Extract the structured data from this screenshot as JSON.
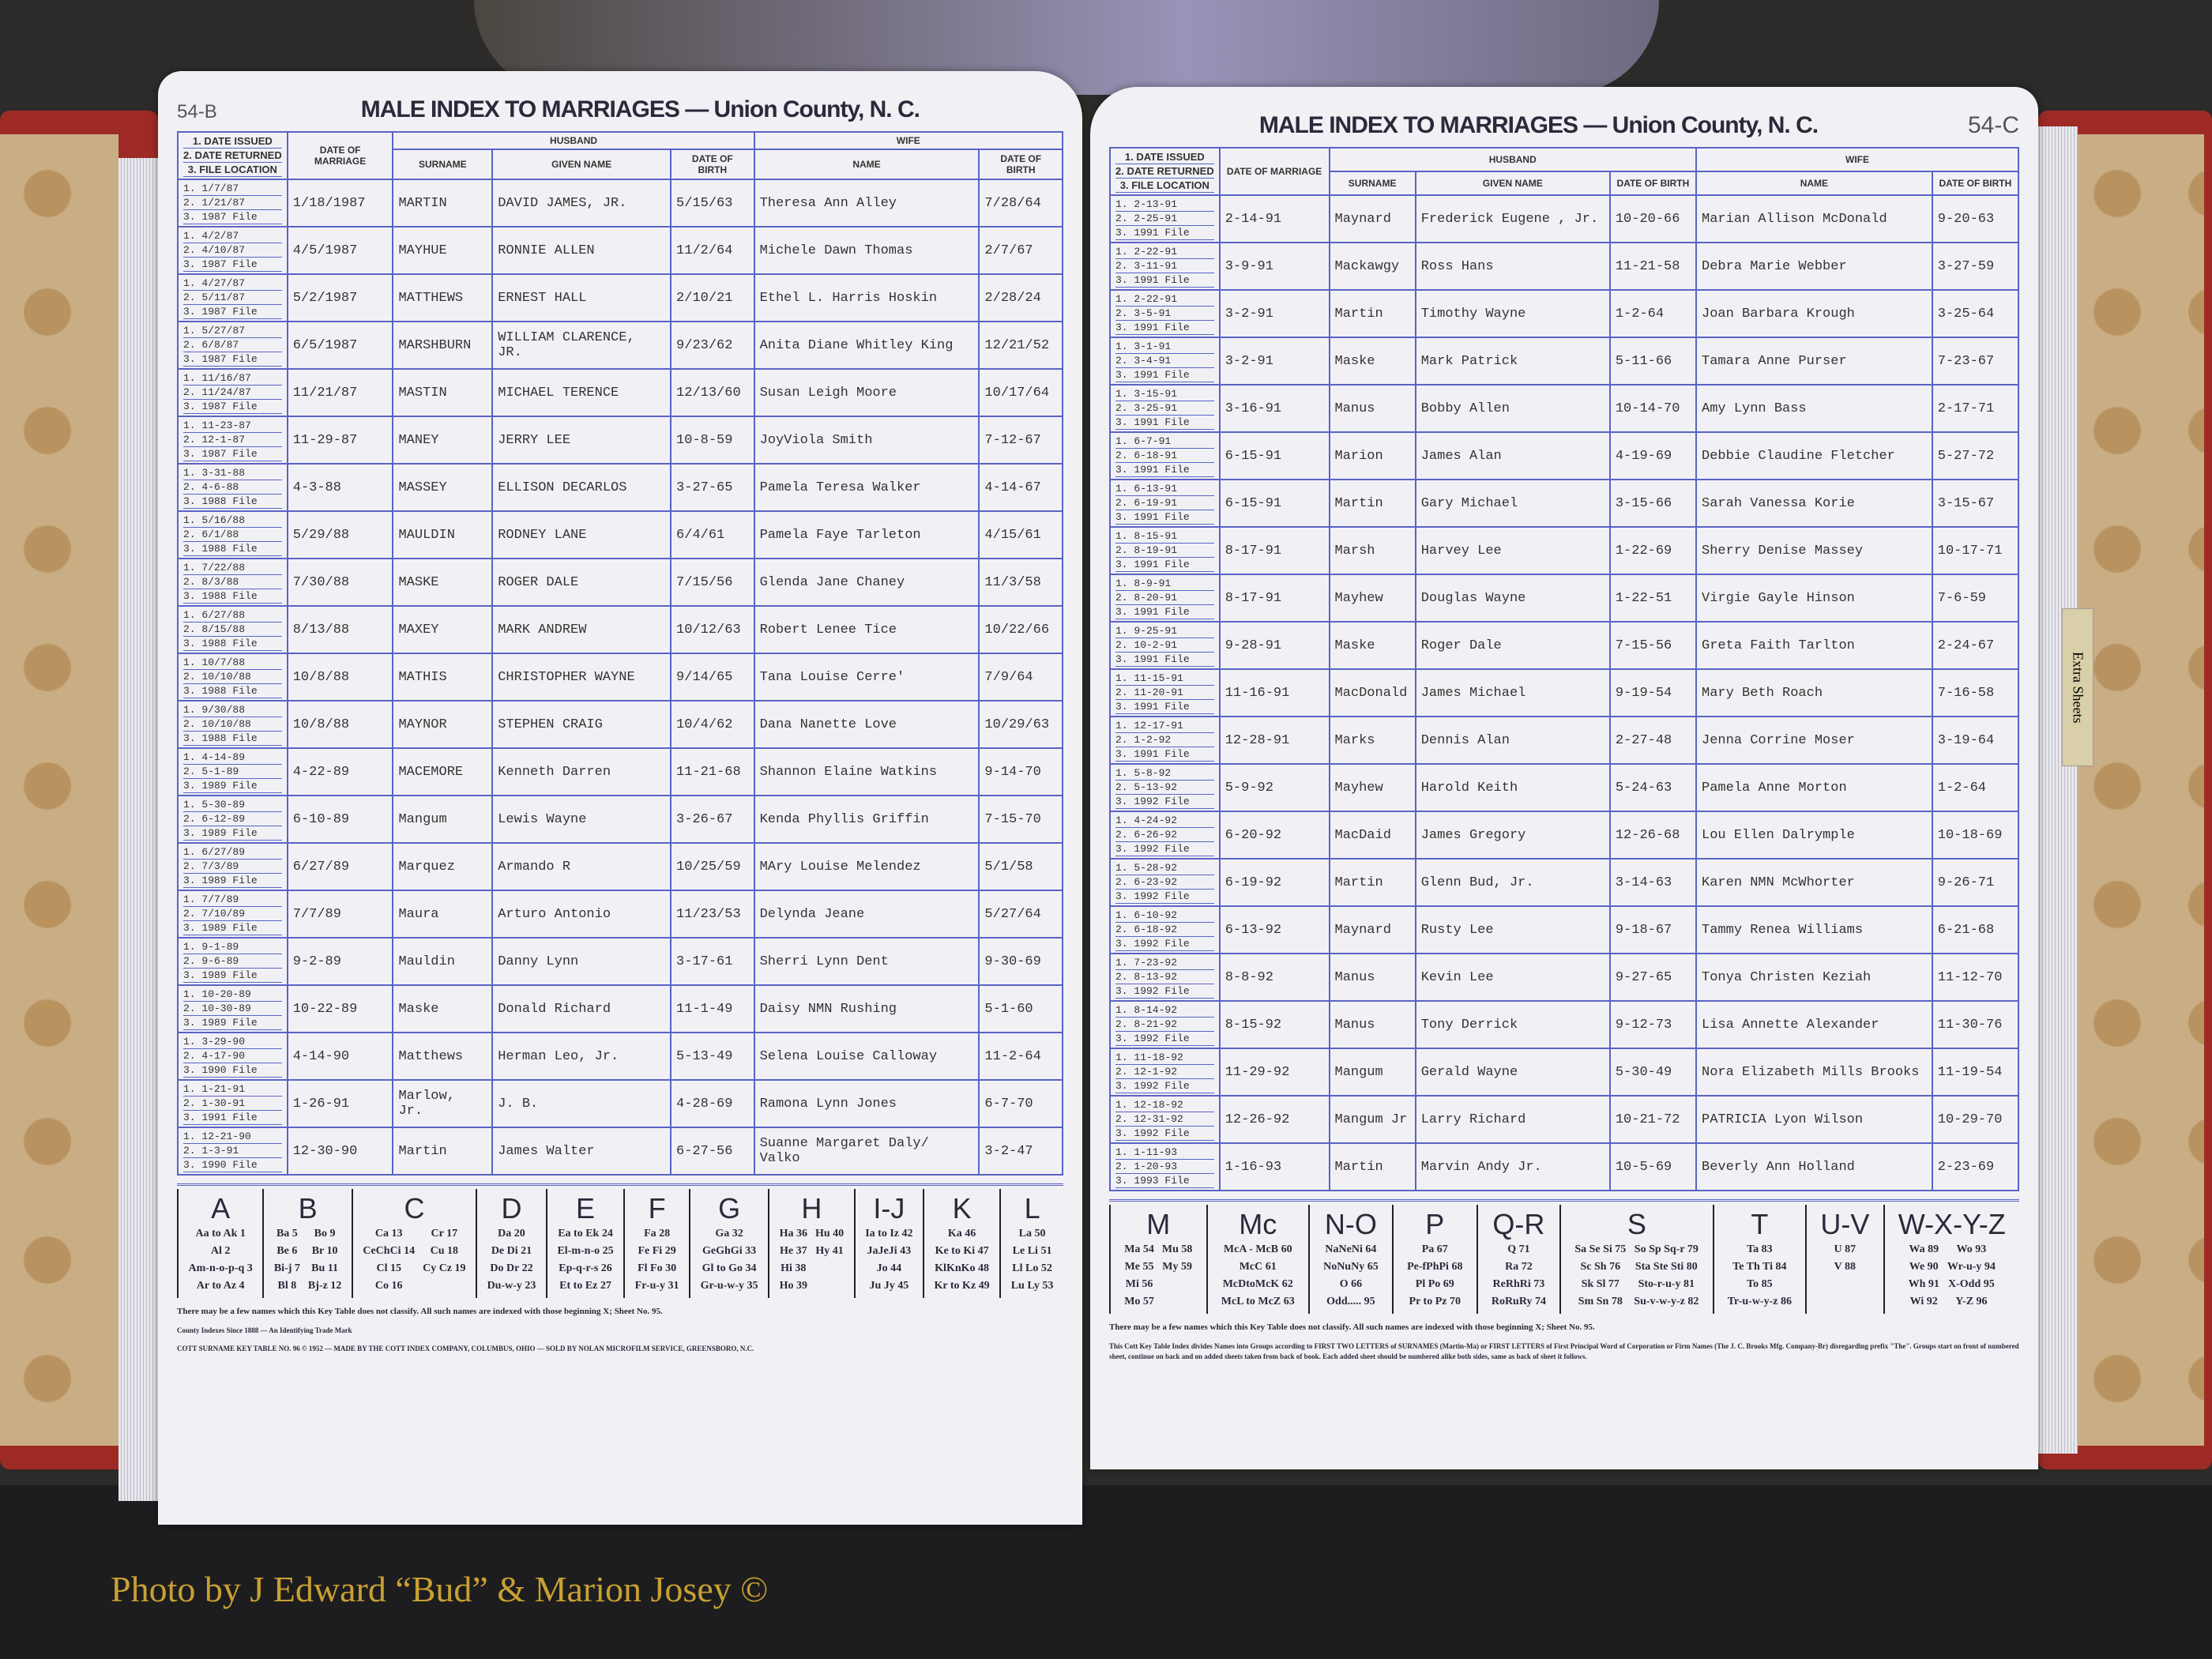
{
  "title": "MALE INDEX TO MARRIAGES — Union County, N. C.",
  "headers": {
    "issued": [
      "1. DATE ISSUED",
      "2. DATE RETURNED",
      "3. FILE LOCATION"
    ],
    "marriage": "DATE OF MARRIAGE",
    "husband": "HUSBAND",
    "surname": "SURNAME",
    "given": "GIVEN NAME",
    "dob": "DATE OF BIRTH",
    "wife": "WIFE",
    "name": "NAME",
    "wdob": "DATE OF BIRTH"
  },
  "left_page": {
    "page_number": "54-B",
    "records": [
      [
        "1/7/87",
        "1/21/87",
        "1987 File",
        "1/18/1987",
        "MARTIN",
        "DAVID JAMES, JR.",
        "5/15/63",
        "Theresa Ann Alley",
        "7/28/64"
      ],
      [
        "4/2/87",
        "4/10/87",
        "1987 File",
        "4/5/1987",
        "MAYHUE",
        "RONNIE ALLEN",
        "11/2/64",
        "Michele Dawn Thomas",
        "2/7/67"
      ],
      [
        "4/27/87",
        "5/11/87",
        "1987 File",
        "5/2/1987",
        "MATTHEWS",
        "ERNEST HALL",
        "2/10/21",
        "Ethel L. Harris Hoskin",
        "2/28/24"
      ],
      [
        "5/27/87",
        "6/8/87",
        "1987 File",
        "6/5/1987",
        "MARSHBURN",
        "WILLIAM CLARENCE, JR.",
        "9/23/62",
        "Anita Diane Whitley King",
        "12/21/52"
      ],
      [
        "11/16/87",
        "11/24/87",
        "1987 File",
        "11/21/87",
        "MASTIN",
        "MICHAEL TERENCE",
        "12/13/60",
        "Susan Leigh Moore",
        "10/17/64"
      ],
      [
        "11-23-87",
        "12-1-87",
        "1987 File",
        "11-29-87",
        "MANEY",
        "JERRY LEE",
        "10-8-59",
        "JoyViola Smith",
        "7-12-67"
      ],
      [
        "3-31-88",
        "4-6-88",
        "1988 File",
        "4-3-88",
        "MASSEY",
        "ELLISON DECARLOS",
        "3-27-65",
        "Pamela Teresa Walker",
        "4-14-67"
      ],
      [
        "5/16/88",
        "6/1/88",
        "1988 File",
        "5/29/88",
        "MAULDIN",
        "RODNEY LANE",
        "6/4/61",
        "Pamela Faye Tarleton",
        "4/15/61"
      ],
      [
        "7/22/88",
        "8/3/88",
        "1988 File",
        "7/30/88",
        "MASKE",
        "ROGER DALE",
        "7/15/56",
        "Glenda Jane Chaney",
        "11/3/58"
      ],
      [
        "6/27/88",
        "8/15/88",
        "1988 File",
        "8/13/88",
        "MAXEY",
        "MARK ANDREW",
        "10/12/63",
        "Robert Lenee Tice",
        "10/22/66"
      ],
      [
        "10/7/88",
        "10/10/88",
        "1988 File",
        "10/8/88",
        "MATHIS",
        "CHRISTOPHER WAYNE",
        "9/14/65",
        "Tana Louise Cerre'",
        "7/9/64"
      ],
      [
        "9/30/88",
        "10/10/88",
        "1988 File",
        "10/8/88",
        "MAYNOR",
        "STEPHEN CRAIG",
        "10/4/62",
        "Dana Nanette Love",
        "10/29/63"
      ],
      [
        "4-14-89",
        "5-1-89",
        "1989 File",
        "4-22-89",
        "MACEMORE",
        "Kenneth Darren",
        "11-21-68",
        "Shannon Elaine Watkins",
        "9-14-70"
      ],
      [
        "5-30-89",
        "6-12-89",
        "1989 File",
        "6-10-89",
        "Mangum",
        "Lewis Wayne",
        "3-26-67",
        "Kenda Phyllis Griffin",
        "7-15-70"
      ],
      [
        "6/27/89",
        "7/3/89",
        "1989 File",
        "6/27/89",
        "Marquez",
        "Armando R",
        "10/25/59",
        "MAry Louise Melendez",
        "5/1/58"
      ],
      [
        "7/7/89",
        "7/10/89",
        "1989 File",
        "7/7/89",
        "Maura",
        "Arturo Antonio",
        "11/23/53",
        "Delynda Jeane",
        "5/27/64"
      ],
      [
        "9-1-89",
        "9-6-89",
        "1989 File",
        "9-2-89",
        "Mauldin",
        "Danny Lynn",
        "3-17-61",
        "Sherri Lynn Dent",
        "9-30-69"
      ],
      [
        "10-20-89",
        "10-30-89",
        "1989 File",
        "10-22-89",
        "Maske",
        "Donald Richard",
        "11-1-49",
        "Daisy NMN Rushing",
        "5-1-60"
      ],
      [
        "3-29-90",
        "4-17-90",
        "1990 File",
        "4-14-90",
        "Matthews",
        "Herman Leo, Jr.",
        "5-13-49",
        "Selena Louise Calloway",
        "11-2-64"
      ],
      [
        "1-21-91",
        "1-30-91",
        "1991 File",
        "1-26-91",
        "Marlow, Jr.",
        "J. B.",
        "4-28-69",
        "Ramona Lynn Jones",
        "6-7-70"
      ],
      [
        "12-21-90",
        "1-3-91",
        "1990 File",
        "12-30-90",
        "Martin",
        "James Walter",
        "6-27-56",
        "Suanne Margaret Daly/ Valko",
        "3-2-47"
      ]
    ]
  },
  "right_page": {
    "page_number": "54-C",
    "records": [
      [
        "2-13-91",
        "2-25-91",
        "1991 File",
        "2-14-91",
        "Maynard",
        "Frederick Eugene , Jr.",
        "10-20-66",
        "Marian Allison McDonald",
        "9-20-63"
      ],
      [
        "2-22-91",
        "3-11-91",
        "1991 File",
        "3-9-91",
        "Mackawgy",
        "Ross Hans",
        "11-21-58",
        "Debra Marie Webber",
        "3-27-59"
      ],
      [
        "2-22-91",
        "3-5-91",
        "1991 File",
        "3-2-91",
        "Martin",
        "Timothy Wayne",
        "1-2-64",
        "Joan Barbara Krough",
        "3-25-64"
      ],
      [
        "3-1-91",
        "3-4-91",
        "1991 File",
        "3-2-91",
        "Maske",
        "Mark Patrick",
        "5-11-66",
        "Tamara Anne Purser",
        "7-23-67"
      ],
      [
        "3-15-91",
        "3-25-91",
        "1991 File",
        "3-16-91",
        "Manus",
        "Bobby Allen",
        "10-14-70",
        "Amy Lynn Bass",
        "2-17-71"
      ],
      [
        "6-7-91",
        "6-18-91",
        "1991 File",
        "6-15-91",
        "Marion",
        "James Alan",
        "4-19-69",
        "Debbie Claudine Fletcher",
        "5-27-72"
      ],
      [
        "6-13-91",
        "6-19-91",
        "1991 File",
        "6-15-91",
        "Martin",
        "Gary Michael",
        "3-15-66",
        "Sarah Vanessa Korie",
        "3-15-67"
      ],
      [
        "8-15-91",
        "8-19-91",
        "1991 File",
        "8-17-91",
        "Marsh",
        "Harvey Lee",
        "1-22-69",
        "Sherry Denise Massey",
        "10-17-71"
      ],
      [
        "8-9-91",
        "8-20-91",
        "1991 File",
        "8-17-91",
        "Mayhew",
        "Douglas Wayne",
        "1-22-51",
        "Virgie Gayle Hinson",
        "7-6-59"
      ],
      [
        "9-25-91",
        "10-2-91",
        "1991 File",
        "9-28-91",
        "Maske",
        "Roger Dale",
        "7-15-56",
        "Greta Faith Tarlton",
        "2-24-67"
      ],
      [
        "11-15-91",
        "11-20-91",
        "1991 File",
        "11-16-91",
        "MacDonald",
        "James Michael",
        "9-19-54",
        "Mary Beth Roach",
        "7-16-58"
      ],
      [
        "12-17-91",
        "1-2-92",
        "1991 File",
        "12-28-91",
        "Marks",
        "Dennis Alan",
        "2-27-48",
        "Jenna Corrine Moser",
        "3-19-64"
      ],
      [
        "5-8-92",
        "5-13-92",
        "1992 File",
        "5-9-92",
        "Mayhew",
        "Harold Keith",
        "5-24-63",
        "Pamela Anne Morton",
        "1-2-64"
      ],
      [
        "4-24-92",
        "6-26-92",
        "1992 File",
        "6-20-92",
        "MacDaid",
        "James Gregory",
        "12-26-68",
        "Lou Ellen Dalrymple",
        "10-18-69"
      ],
      [
        "5-28-92",
        "6-23-92",
        "1992 File",
        "6-19-92",
        "Martin",
        "Glenn Bud, Jr.",
        "3-14-63",
        "Karen NMN McWhorter",
        "9-26-71"
      ],
      [
        "6-10-92",
        "6-18-92",
        "1992 File",
        "6-13-92",
        "Maynard",
        "Rusty Lee",
        "9-18-67",
        "Tammy Renea Williams",
        "6-21-68"
      ],
      [
        "7-23-92",
        "8-13-92",
        "1992 File",
        "8-8-92",
        "Manus",
        "Kevin Lee",
        "9-27-65",
        "Tonya Christen Keziah",
        "11-12-70"
      ],
      [
        "8-14-92",
        "8-21-92",
        "1992 File",
        "8-15-92",
        "Manus",
        "Tony Derrick",
        "9-12-73",
        "Lisa Annette Alexander",
        "11-30-76"
      ],
      [
        "11-18-92",
        "12-1-92",
        "1992 File",
        "11-29-92",
        "Mangum",
        "Gerald Wayne",
        "5-30-49",
        "Nora Elizabeth Mills Brooks",
        "11-19-54"
      ],
      [
        "12-18-92",
        "12-31-92",
        "1992 File",
        "12-26-92",
        "Mangum Jr",
        "Larry Richard",
        "10-21-72",
        "PATRICIA Lyon Wilson",
        "10-29-70"
      ],
      [
        "1-11-93",
        "1-20-93",
        "1993 File",
        "1-16-93",
        "Martin",
        "Marvin Andy Jr.",
        "10-5-69",
        "Beverly Ann Holland",
        "2-23-69"
      ]
    ]
  },
  "key_left": [
    {
      "letter": "A",
      "entries": [
        "Aa to Ak 1",
        "Al 2",
        "Am-n-o-p-q 3",
        "Ar to Az 4"
      ]
    },
    {
      "letter": "B",
      "entries": [
        "Ba 5",
        "Be 6",
        "Bi-j 7",
        "Bl 8",
        "Bo 9",
        "Br 10",
        "Bu 11",
        "Bj-z 12"
      ]
    },
    {
      "letter": "C",
      "entries": [
        "Ca 13",
        "CeChCi 14",
        "Cl 15",
        "Co 16",
        "Cr 17",
        "Cu 18",
        "Cy Cz 19"
      ]
    },
    {
      "letter": "D",
      "entries": [
        "Da 20",
        "De Di 21",
        "Do Dr 22",
        "Du-w-y 23"
      ]
    },
    {
      "letter": "E",
      "entries": [
        "Ea to Ek 24",
        "El-m-n-o 25",
        "Ep-q-r-s 26",
        "Et to Ez 27"
      ]
    },
    {
      "letter": "F",
      "entries": [
        "Fa 28",
        "Fe Fi 29",
        "Fl Fo 30",
        "Fr-u-y 31"
      ]
    },
    {
      "letter": "G",
      "entries": [
        "Ga 32",
        "GeGhGi 33",
        "Gl to Go 34",
        "Gr-u-w-y 35"
      ]
    },
    {
      "letter": "H",
      "entries": [
        "Ha 36",
        "He 37",
        "Hi 38",
        "Ho 39",
        "Hu 40",
        "Hy 41"
      ]
    },
    {
      "letter": "I-J",
      "entries": [
        "Ia to Iz 42",
        "JaJeJi 43",
        "Jo 44",
        "Ju Jy 45"
      ]
    },
    {
      "letter": "K",
      "entries": [
        "Ka 46",
        "Ke to Ki 47",
        "KlKnKo 48",
        "Kr to Kz 49"
      ]
    },
    {
      "letter": "L",
      "entries": [
        "La 50",
        "Le Li 51",
        "Ll Lo 52",
        "Lu Ly 53"
      ]
    }
  ],
  "key_right": [
    {
      "letter": "M",
      "entries": [
        "Ma 54",
        "Me 55",
        "Mi 56",
        "Mo 57",
        "Mu 58",
        "My 59"
      ]
    },
    {
      "letter": "Mc",
      "entries": [
        "McA - McB 60",
        "McC 61",
        "McDtoMcK 62",
        "McL to McZ 63"
      ]
    },
    {
      "letter": "N-O",
      "entries": [
        "NaNeNi 64",
        "NoNuNy 65",
        "O 66",
        "Odd..... 95"
      ]
    },
    {
      "letter": "P",
      "entries": [
        "Pa 67",
        "Pe-fPhPi 68",
        "Pl Po 69",
        "Pr to Pz 70"
      ]
    },
    {
      "letter": "Q-R",
      "entries": [
        "Q 71",
        "Ra 72",
        "ReRhRi 73",
        "RoRuRy 74"
      ]
    },
    {
      "letter": "S",
      "entries": [
        "Sa Se Si 75",
        "Sc Sh 76",
        "Sk Sl 77",
        "Sm Sn 78",
        "So Sp Sq-r 79",
        "Sta Ste Sti 80",
        "Sto-r-u-y 81",
        "Su-v-w-y-z 82"
      ]
    },
    {
      "letter": "T",
      "entries": [
        "Ta 83",
        "Te Th Ti 84",
        "To 85",
        "Tr-u-w-y-z 86"
      ]
    },
    {
      "letter": "U-V",
      "entries": [
        "U 87",
        "V 88"
      ]
    },
    {
      "letter": "W-X-Y-Z",
      "entries": [
        "Wa 89",
        "We 90",
        "Wh 91",
        "Wi 92",
        "Wo 93",
        "Wr-u-y 94",
        "X-Odd 95",
        "Y-Z 96"
      ]
    }
  ],
  "key_note": "There may be a few names which this Key Table does not classify.  All such names are indexed with those beginning X; Sheet No. 95.",
  "left_footer": "COTT SURNAME KEY TABLE NO. 96 © 1952 — MADE BY THE COTT INDEX COMPANY, COLUMBUS, OHIO — SOLD BY NOLAN MICROFILM SERVICE, GREENSBORO, N.C.",
  "left_trademark": "County Indexes Since 1888 — An Identifying Trade Mark",
  "right_footer": "This Cott Key Table Index divides Names into Groups according to FIRST TWO LETTERS of SURNAMES (Martin-Ma) or FIRST LETTERS of First Principal Word of Corporation or Firm Names (The J. C. Brooks Mfg. Company-Br) disregarding prefix \"The\". Groups start on front of numbered sheet, continue on back and on added sheets taken from back of book. Each added sheet should be numbered alike both sides, same as back of sheet it follows.",
  "tab_label": "Extra Sheets",
  "photo_credit": "Photo by J Edward “Bud” & Marion Josey ©",
  "colors": {
    "ruling": "#5a63c6",
    "cover": "#9e2a26",
    "credit": "#c8a032"
  }
}
